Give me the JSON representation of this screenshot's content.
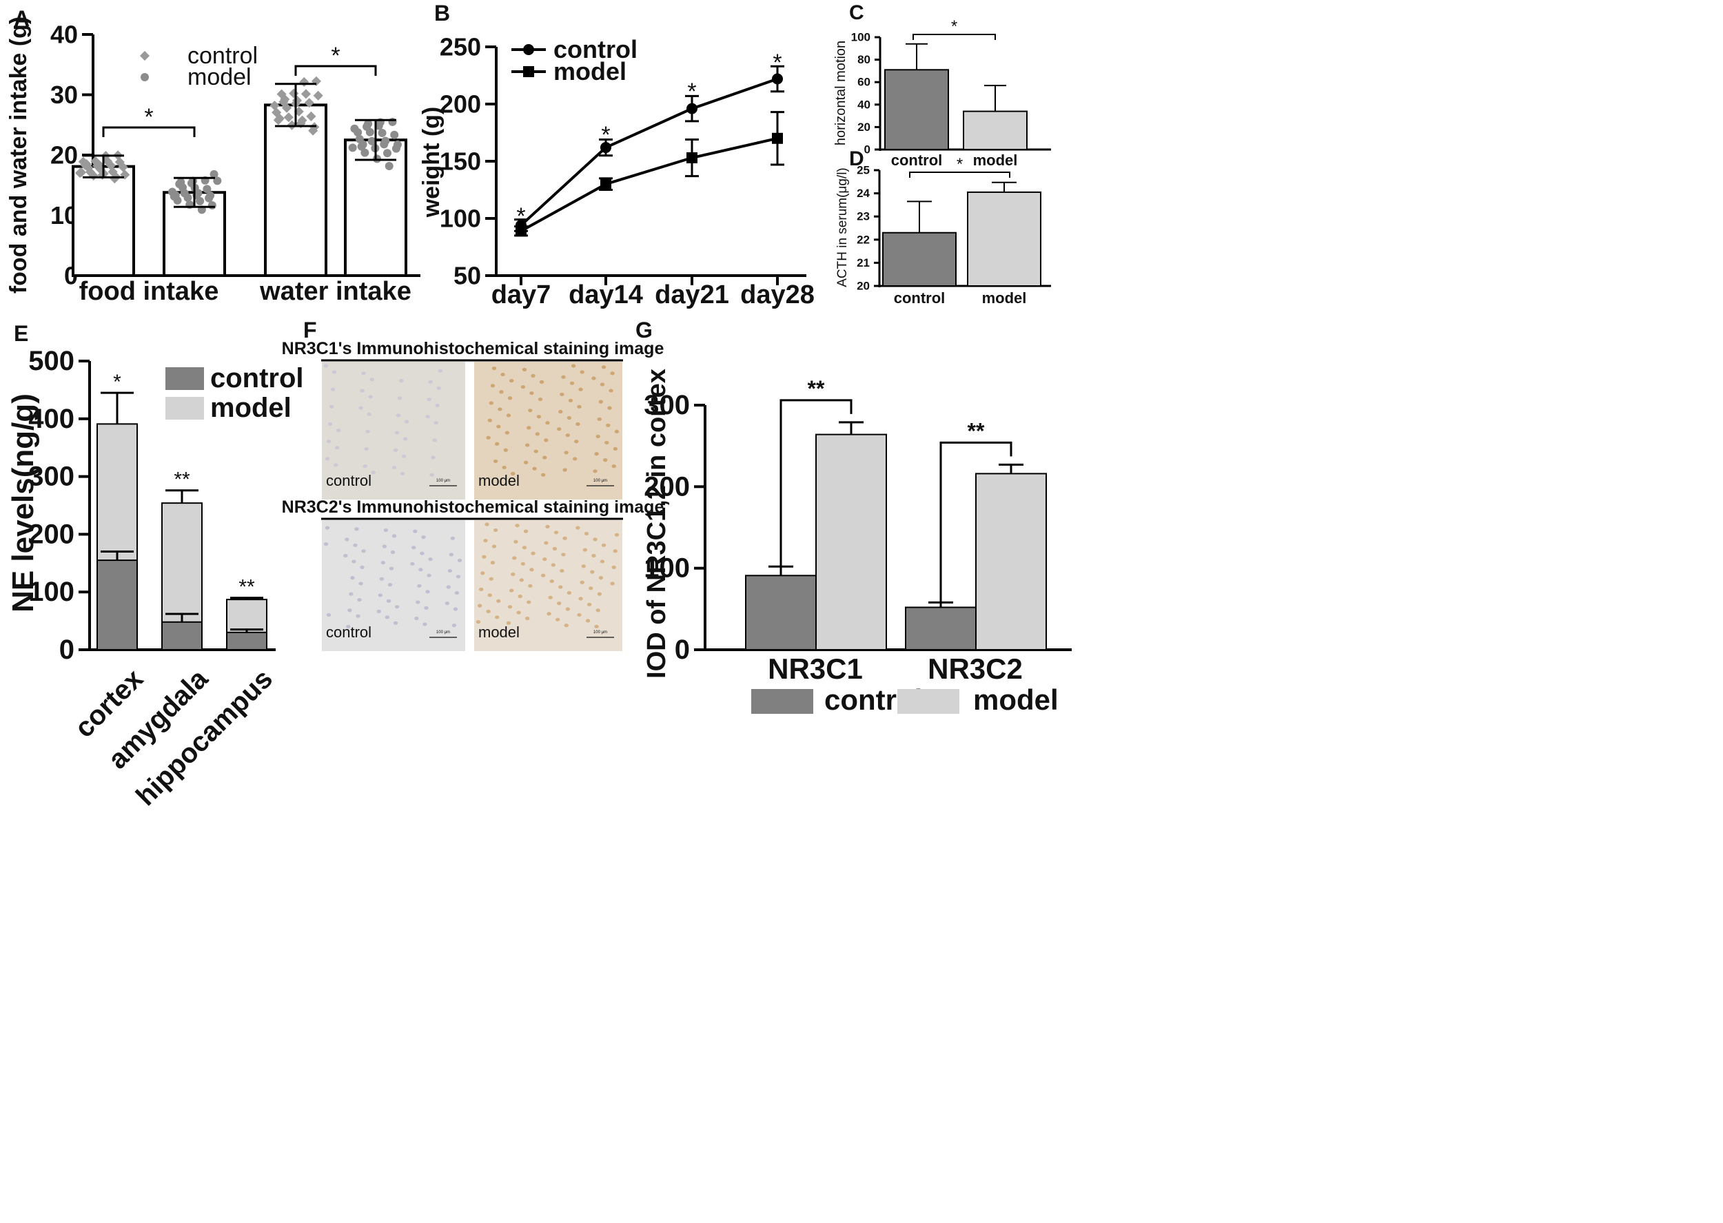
{
  "colors": {
    "control": "#808080",
    "model": "#d3d3d3",
    "axis": "#000000",
    "control_dot": "#9a9a9a",
    "model_dot": "#8c8c8c",
    "ihc_control": "#dfdcd6",
    "ihc_model": "#e4d4bd"
  },
  "chart_data": [
    {
      "panel": "A",
      "type": "bar",
      "ylabel": "food and water intake (g)",
      "ylim": [
        0,
        40
      ],
      "yticks": [
        "0",
        "10",
        "20",
        "30",
        "40"
      ],
      "categories": [
        "food intake",
        "water intake"
      ],
      "series": [
        {
          "name": "control",
          "values": [
            18.1,
            28.3
          ],
          "errors": [
            1.8,
            3.5
          ]
        },
        {
          "name": "model",
          "values": [
            13.8,
            22.5
          ],
          "errors": [
            2.4,
            3.3
          ]
        }
      ],
      "significance": [
        "*",
        "*"
      ],
      "legend_position": "top-left",
      "grid": false
    },
    {
      "panel": "B",
      "type": "line",
      "ylabel": "weight (g)",
      "ylim": [
        50,
        250
      ],
      "yticks": [
        "50",
        "100",
        "150",
        "200",
        "250"
      ],
      "x": [
        "day7",
        "day14",
        "day21",
        "day28"
      ],
      "series": [
        {
          "name": "control",
          "marker": "circle",
          "values": [
            94,
            162,
            196,
            222
          ],
          "errors": [
            5,
            7,
            11,
            11
          ]
        },
        {
          "name": "model",
          "marker": "square",
          "values": [
            89,
            130,
            153,
            170
          ],
          "errors": [
            4,
            5,
            16,
            23
          ]
        }
      ],
      "significance": [
        "*",
        "*",
        "*",
        "*"
      ],
      "legend_position": "top-left",
      "grid": false
    },
    {
      "panel": "C",
      "type": "bar",
      "ylabel": "horizontal motion",
      "ylim": [
        0,
        100
      ],
      "yticks": [
        "0",
        "20",
        "40",
        "60",
        "80",
        "100"
      ],
      "categories": [
        "control",
        "model"
      ],
      "values": [
        71,
        34
      ],
      "errors": [
        23,
        23
      ],
      "significance": [
        "*"
      ],
      "grid": false
    },
    {
      "panel": "D",
      "type": "bar",
      "ylabel": "ACTH in serum(μg/l)",
      "ylim": [
        20,
        25
      ],
      "yticks": [
        "20",
        "21",
        "22",
        "23",
        "24",
        "25"
      ],
      "categories": [
        "control",
        "model"
      ],
      "values": [
        22.3,
        24.05
      ],
      "errors": [
        1.35,
        0.42
      ],
      "significance": [
        "*"
      ],
      "grid": false
    },
    {
      "panel": "E",
      "type": "bar",
      "stacked": true,
      "ylabel": "NE levels(ng/g)",
      "ylim": [
        0,
        500
      ],
      "yticks": [
        "0",
        "100",
        "200",
        "300",
        "400",
        "500"
      ],
      "categories": [
        "cortex",
        "amygdala",
        "hippocampus"
      ],
      "series": [
        {
          "name": "control",
          "values": [
            155,
            48,
            30
          ],
          "errors": [
            15,
            14,
            5
          ]
        },
        {
          "name": "model",
          "values": [
            391,
            254,
            87
          ],
          "errors": [
            54,
            22,
            3
          ]
        }
      ],
      "significance": [
        "*",
        "**",
        "**"
      ],
      "legend_position": "top-right",
      "grid": false
    },
    {
      "panel": "G",
      "type": "bar",
      "ylabel": "IOD of NR3C1,2 in cortex",
      "ylim": [
        0,
        300
      ],
      "yticks": [
        "0",
        "100",
        "200",
        "300"
      ],
      "categories": [
        "NR3C1",
        "NR3C2"
      ],
      "series": [
        {
          "name": "control",
          "values": [
            91,
            52
          ],
          "errors": [
            11,
            6
          ]
        },
        {
          "name": "model",
          "values": [
            264,
            216
          ],
          "errors": [
            15,
            11
          ]
        }
      ],
      "significance": [
        "**",
        "**"
      ],
      "legend_position": "bottom",
      "grid": false
    }
  ],
  "panel_f": {
    "label": "F",
    "top_title": "NR3C1's Immunohistochemical staining image",
    "bottom_title": "NR3C2's Immunohistochemical staining image",
    "image_labels": [
      "control",
      "model",
      "control",
      "model"
    ],
    "scale_bar": "100 μm"
  }
}
